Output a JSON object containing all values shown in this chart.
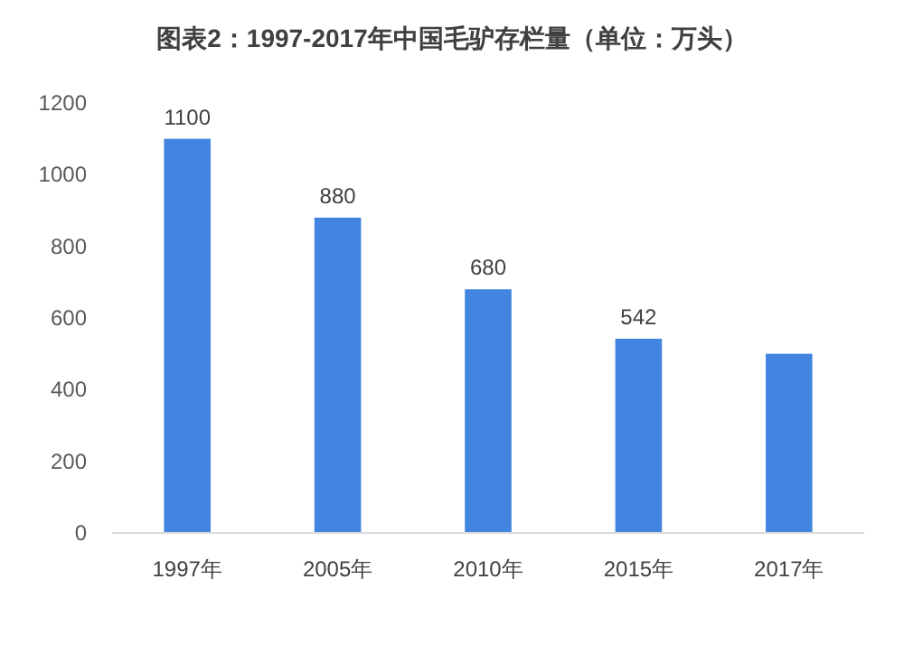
{
  "chart_data": {
    "type": "bar",
    "title": "图表2：1997-2017年中国毛驴存栏量（单位：万头）",
    "categories": [
      "1997年",
      "2005年",
      "2010年",
      "2015年",
      "2017年"
    ],
    "values": [
      1100,
      880,
      680,
      542,
      500
    ],
    "value_labels": [
      "1100",
      "880",
      "680",
      "542",
      null
    ],
    "color": "#4285e0",
    "ylim": [
      0,
      1200
    ],
    "yticks": [
      0,
      200,
      400,
      600,
      800,
      1000,
      1200
    ],
    "grid": false
  }
}
